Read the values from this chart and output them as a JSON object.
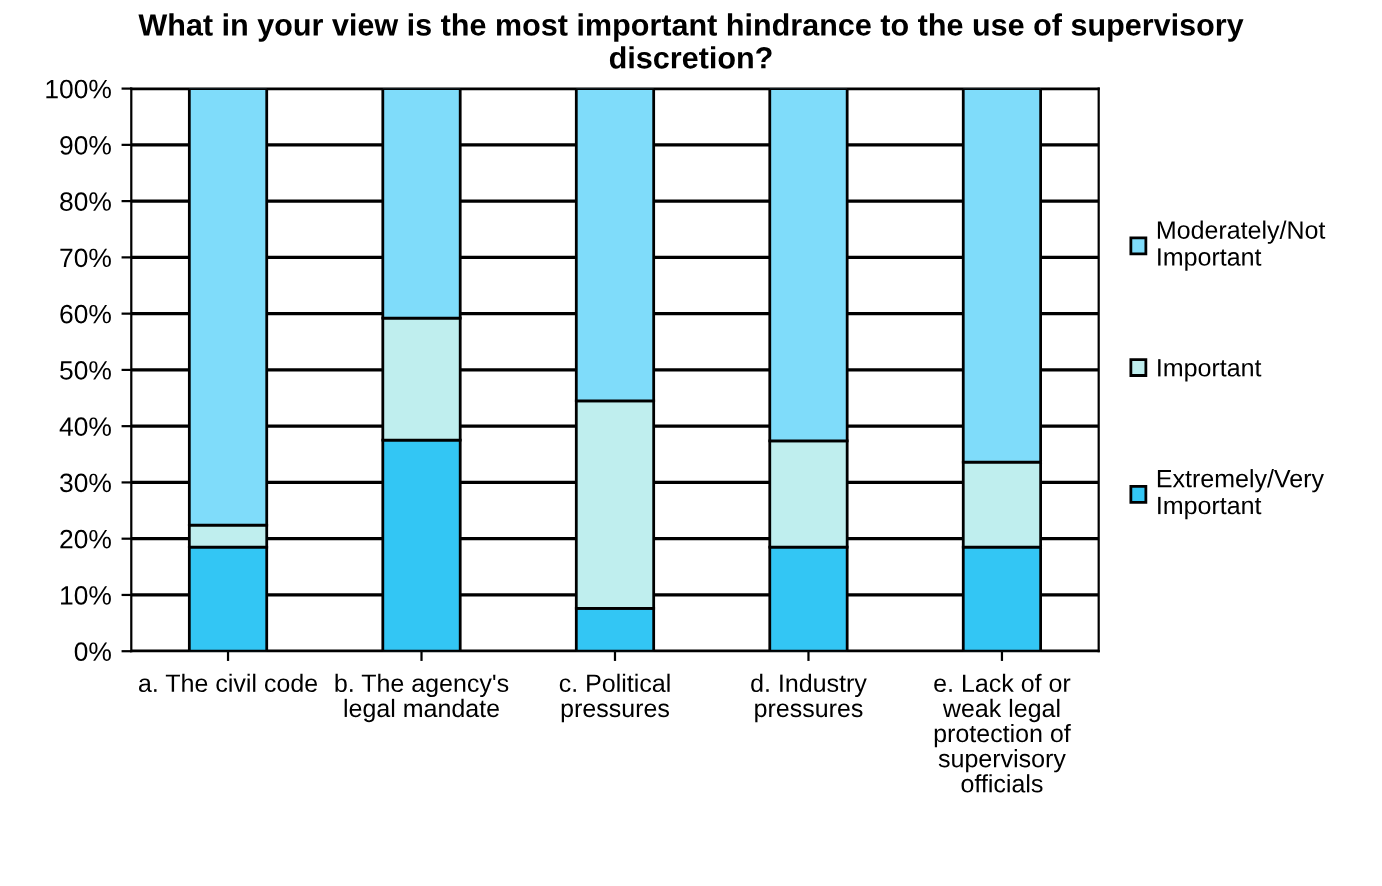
{
  "chart_data": {
    "type": "bar",
    "title": "What in your view is the most important hindrance to the use of supervisory discretion?",
    "categories": [
      "a. The civil code",
      "b. The agency's legal mandate",
      "c. Political pressures",
      "d. Industry pressures",
      "e. Lack of or weak legal protection of supervisory officials"
    ],
    "stacked": true,
    "series": [
      {
        "name": "Extremely/Very Important",
        "color": "#33c6f4",
        "values": [
          18.5,
          37.5,
          7.6,
          18.5,
          18.5
        ]
      },
      {
        "name": "Important",
        "color": "#bfeeee",
        "values": [
          3.9,
          21.7,
          36.9,
          18.9,
          15.1
        ]
      },
      {
        "name": "Moderately/Not Important",
        "color": "#7fdcfa",
        "values": [
          77.6,
          40.8,
          55.5,
          62.6,
          66.4
        ]
      }
    ],
    "ylim": [
      0,
      100
    ],
    "yticks": [
      {
        "value": 0,
        "label": "0%"
      },
      {
        "value": 10,
        "label": "10%"
      },
      {
        "value": 20,
        "label": "20%"
      },
      {
        "value": 30,
        "label": "30%"
      },
      {
        "value": 40,
        "label": "40%"
      },
      {
        "value": 50,
        "label": "50%"
      },
      {
        "value": 60,
        "label": "60%"
      },
      {
        "value": 70,
        "label": "70%"
      },
      {
        "value": 80,
        "label": "80%"
      },
      {
        "value": 90,
        "label": "90%"
      },
      {
        "value": 100,
        "label": "100%"
      }
    ],
    "grid": "y",
    "legend": "right"
  }
}
